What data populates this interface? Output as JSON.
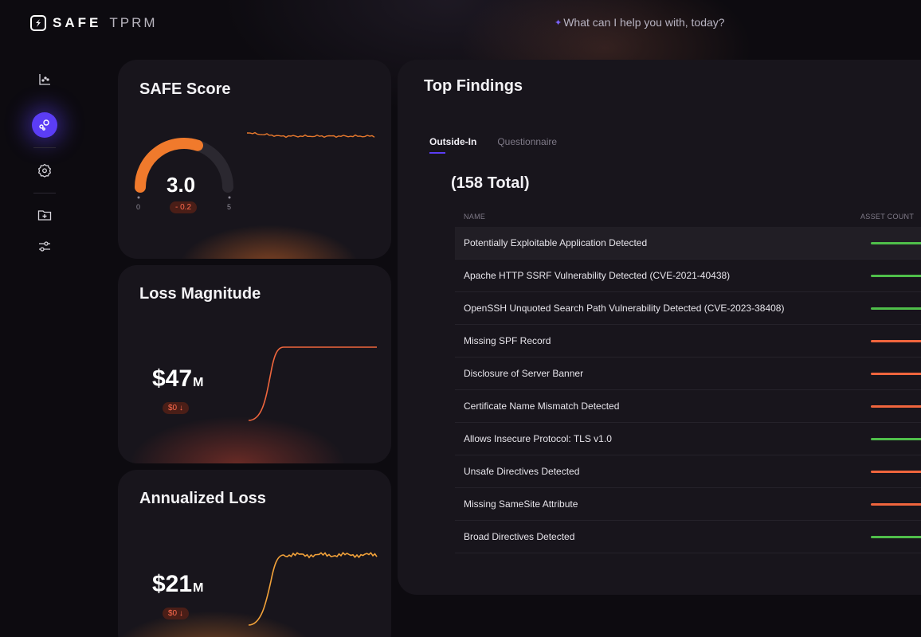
{
  "brand": {
    "name": "SAFE",
    "product": "TPRM"
  },
  "assistant": {
    "prompt": "What can I help you with, today?",
    "icon": "sparkle-icon"
  },
  "sidebar": {
    "items": [
      {
        "icon": "chart-icon",
        "active": false
      },
      {
        "icon": "radar-icon",
        "active": true
      },
      {
        "icon": "badge-settings-icon",
        "active": false
      },
      {
        "icon": "folder-add-icon",
        "active": false
      },
      {
        "icon": "sliders-icon",
        "active": false
      }
    ]
  },
  "score": {
    "title": "SAFE Score",
    "value": "3.0",
    "value_num": 3.0,
    "min": "0",
    "max": "5",
    "delta": "- 0.2"
  },
  "loss_magnitude": {
    "title": "Loss Magnitude",
    "amount": "$47",
    "unit": "M",
    "delta": "$0 ↓"
  },
  "annualized_loss": {
    "title": "Annualized Loss",
    "amount": "$21",
    "unit": "M",
    "delta": "$0 ↓"
  },
  "findings": {
    "title": "Top Findings",
    "tabs": [
      {
        "label": "Outside-In",
        "active": true
      },
      {
        "label": "Questionnaire",
        "active": false
      }
    ],
    "total": "(158 Total)",
    "columns": {
      "name": "NAME",
      "count": "ASSET COUNT"
    },
    "colors": {
      "green": "#4fbf4a",
      "orange": "#f0653d"
    },
    "rows": [
      {
        "name": "Potentially Exploitable Application Detected",
        "bar": "green"
      },
      {
        "name": "Apache HTTP SSRF Vulnerability Detected (CVE-2021-40438)",
        "bar": "green"
      },
      {
        "name": "OpenSSH Unquoted Search Path Vulnerability Detected (CVE-2023-38408)",
        "bar": "green"
      },
      {
        "name": "Missing SPF Record",
        "bar": "orange"
      },
      {
        "name": "Disclosure of Server Banner",
        "bar": "orange"
      },
      {
        "name": "Certificate Name Mismatch Detected",
        "bar": "orange"
      },
      {
        "name": "Allows Insecure Protocol: TLS v1.0",
        "bar": "green"
      },
      {
        "name": "Unsafe Directives Detected",
        "bar": "orange"
      },
      {
        "name": "Missing SameSite Attribute",
        "bar": "orange"
      },
      {
        "name": "Broad Directives Detected",
        "bar": "green"
      }
    ]
  }
}
